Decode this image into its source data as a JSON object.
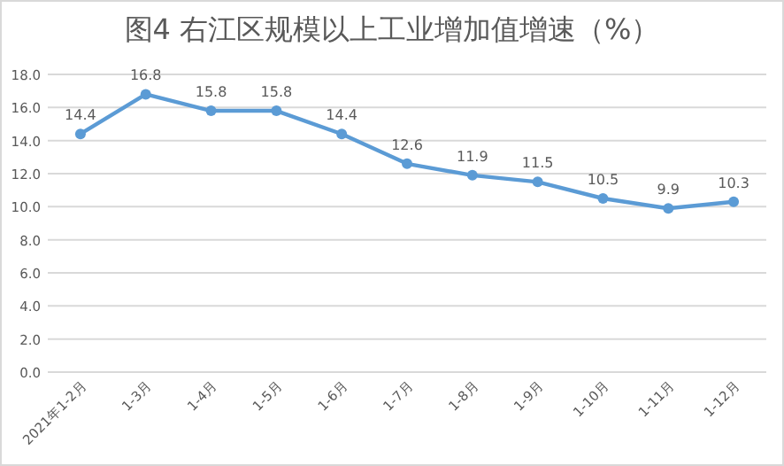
{
  "chart_data": {
    "type": "line",
    "title": "图4  右江区规模以上工业增加值增速（%）",
    "categories": [
      "2021年1-2月",
      "1-3月",
      "1-4月",
      "1-5月",
      "1-6月",
      "1-7月",
      "1-8月",
      "1-9月",
      "1-10月",
      "1-11月",
      "1-12月"
    ],
    "series": [
      {
        "color": "#5b9bd5",
        "values": [
          14.4,
          16.8,
          15.8,
          15.8,
          14.4,
          12.6,
          11.9,
          11.5,
          10.5,
          9.9,
          10.3
        ]
      }
    ],
    "ylim": [
      0,
      18
    ],
    "yticks": [
      {
        "value": 0,
        "label": "0.0"
      },
      {
        "value": 2,
        "label": "2.0"
      },
      {
        "value": 4,
        "label": "4.0"
      },
      {
        "value": 6,
        "label": "6.0"
      },
      {
        "value": 8,
        "label": "8.0"
      },
      {
        "value": 10,
        "label": "10.0"
      },
      {
        "value": 12,
        "label": "12.0"
      },
      {
        "value": 14,
        "label": "14.0"
      },
      {
        "value": 16,
        "label": "16.0"
      },
      {
        "value": 18,
        "label": "18.0"
      }
    ],
    "grid": "y",
    "marker": "circle",
    "line_style": "solid",
    "data_labels": true
  }
}
